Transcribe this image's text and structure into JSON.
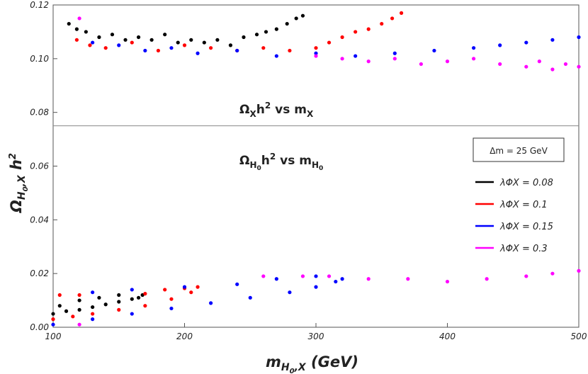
{
  "chart_data": {
    "type": "scatter",
    "xlim": [
      100,
      500
    ],
    "ylim": [
      0,
      0.12
    ],
    "xticks": [
      100,
      200,
      300,
      400,
      500
    ],
    "yticks": [
      {
        "value": 0,
        "label": "0.00"
      },
      {
        "value": 0.02,
        "label": "0.02"
      },
      {
        "value": 0.04,
        "label": "0.04"
      },
      {
        "value": 0.06,
        "label": "0.06"
      },
      {
        "value": 0.08,
        "label": "0.08"
      },
      {
        "value": 0.1,
        "label": "0.10"
      },
      {
        "value": 0.12,
        "label": "0.12"
      }
    ],
    "hline": 0.075,
    "x_label": {
      "base": "m",
      "sub": "H",
      "subsub": "0",
      "sub2": ",X",
      "rest": " (GeV)"
    },
    "y_label": {
      "base": "Ω",
      "sub": "H",
      "subsub": "0",
      "sub2": ",X",
      "rest": " h",
      "sup": "2"
    },
    "annotations": [
      {
        "base": "Ω",
        "sub": "X",
        "mid": "h",
        "sup": "2",
        "vs": " vs m",
        "sub2": "X"
      },
      {
        "base": "Ω",
        "sub": "H",
        "subsub": "0",
        "mid": "h",
        "sup": "2",
        "vs": " vs m",
        "sub2": "H",
        "subsub2": "0"
      }
    ],
    "legend_title": "Δm = 25 GeV",
    "series": [
      {
        "name": "λΦX = 0.08",
        "color": "#000000",
        "x": [
          112,
          118,
          125,
          135,
          145,
          155,
          165,
          175,
          185,
          195,
          205,
          215,
          225,
          235,
          245,
          255,
          262,
          270,
          278,
          285,
          290,
          100,
          110,
          120,
          130,
          140,
          150,
          160,
          168,
          165,
          150,
          135,
          120,
          105
        ],
        "values": [
          0.113,
          0.111,
          0.11,
          0.108,
          0.109,
          0.107,
          0.108,
          0.107,
          0.109,
          0.106,
          0.107,
          0.106,
          0.107,
          0.105,
          0.108,
          0.109,
          0.11,
          0.111,
          0.113,
          0.115,
          0.116,
          0.005,
          0.006,
          0.0065,
          0.0075,
          0.0085,
          0.0095,
          0.0105,
          0.012,
          0.011,
          0.012,
          0.011,
          0.01,
          0.008
        ]
      },
      {
        "name": "λΦX = 0.1",
        "color": "#ff0000",
        "x": [
          118,
          128,
          140,
          160,
          180,
          200,
          220,
          240,
          260,
          280,
          300,
          310,
          320,
          330,
          340,
          350,
          358,
          365,
          100,
          115,
          130,
          150,
          170,
          190,
          205,
          210,
          200,
          185,
          170,
          120,
          105
        ],
        "values": [
          0.107,
          0.105,
          0.104,
          0.106,
          0.103,
          0.105,
          0.104,
          0.103,
          0.104,
          0.103,
          0.104,
          0.106,
          0.108,
          0.11,
          0.111,
          0.113,
          0.115,
          0.117,
          0.003,
          0.004,
          0.005,
          0.0065,
          0.008,
          0.0105,
          0.013,
          0.015,
          0.0145,
          0.014,
          0.0125,
          0.012,
          0.012
        ]
      },
      {
        "name": "λΦX = 0.15",
        "color": "#0000ff",
        "x": [
          130,
          150,
          170,
          190,
          210,
          240,
          270,
          300,
          330,
          360,
          390,
          420,
          440,
          460,
          480,
          500,
          100,
          130,
          160,
          190,
          220,
          250,
          280,
          300,
          315,
          320,
          300,
          270,
          240,
          200,
          160,
          130
        ],
        "values": [
          0.106,
          0.105,
          0.103,
          0.104,
          0.102,
          0.103,
          0.101,
          0.102,
          0.101,
          0.102,
          0.103,
          0.104,
          0.105,
          0.106,
          0.107,
          0.108,
          0.001,
          0.003,
          0.005,
          0.007,
          0.009,
          0.011,
          0.013,
          0.015,
          0.017,
          0.018,
          0.019,
          0.018,
          0.016,
          0.015,
          0.014,
          0.013
        ]
      },
      {
        "name": "λΦX = 0.3",
        "color": "#ff00ff",
        "x": [
          120,
          300,
          320,
          340,
          360,
          380,
          400,
          420,
          440,
          460,
          470,
          480,
          490,
          500,
          120,
          260,
          290,
          310,
          340,
          370,
          400,
          430,
          460,
          480,
          500
        ],
        "values": [
          0.115,
          0.101,
          0.1,
          0.099,
          0.1,
          0.098,
          0.099,
          0.1,
          0.098,
          0.097,
          0.099,
          0.096,
          0.098,
          0.097,
          0.001,
          0.019,
          0.019,
          0.019,
          0.018,
          0.018,
          0.017,
          0.018,
          0.019,
          0.02,
          0.021
        ]
      }
    ]
  }
}
